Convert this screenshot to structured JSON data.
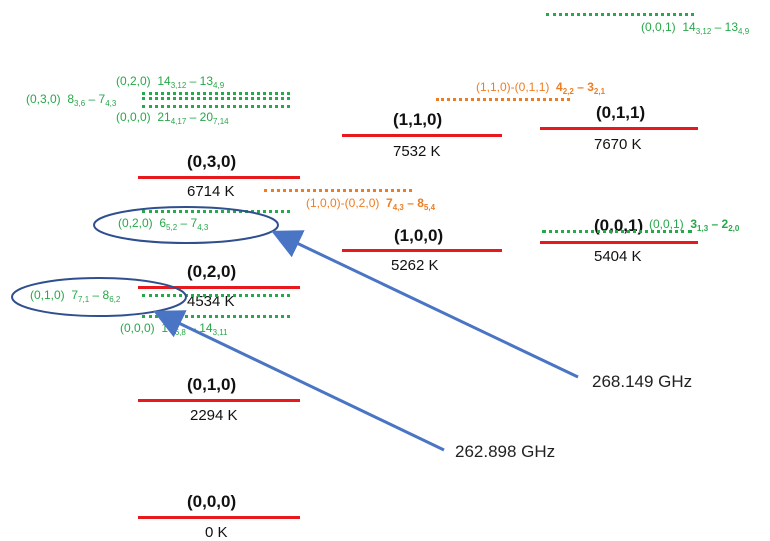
{
  "levels": {
    "l000": {
      "state": "(0,0,0)",
      "energy": "0 K"
    },
    "l010": {
      "state": "(0,1,0)",
      "energy": "2294 K"
    },
    "l020": {
      "state": "(0,2,0)",
      "energy": "4534 K"
    },
    "l030": {
      "state": "(0,3,0)",
      "energy": "6714 K"
    },
    "l100": {
      "state": "(1,0,0)",
      "energy": "5262 K"
    },
    "l001": {
      "state": "(0,0,1)",
      "energy": "5404 K"
    },
    "l110": {
      "state": "(1,1,0)",
      "energy": "7532 K"
    },
    "l011": {
      "state": "(0,1,1)",
      "energy": "7670 K"
    }
  },
  "transitions": {
    "t_001_top": {
      "state": "(0,0,1)",
      "upper": "14",
      "upper_sub": "3,12",
      "dash": "–",
      "lower": "13",
      "lower_sub": "4,9"
    },
    "t_020_top": {
      "state": "(0,2,0)",
      "upper": "14",
      "upper_sub": "3,12",
      "dash": "–",
      "lower": "13",
      "lower_sub": "4,9"
    },
    "t_030_top": {
      "state": "(0,3,0)",
      "upper": "8",
      "upper_sub": "3,6",
      "dash": "–",
      "lower": "7",
      "lower_sub": "4,3"
    },
    "t_000_top": {
      "state": "(0,0,0)",
      "upper": "21",
      "upper_sub": "4,17",
      "dash": "–",
      "lower": "20",
      "lower_sub": "7,14"
    },
    "t_110_011": {
      "state": "(1,1,0)-(0,1,1)",
      "upper": "4",
      "upper_sub": "2,2",
      "dash": "–",
      "lower": "3",
      "lower_sub": "2,1"
    },
    "t_100_020": {
      "state": "(1,0,0)-(0,2,0)",
      "upper": "7",
      "upper_sub": "4,3",
      "dash": "–",
      "lower": "8",
      "lower_sub": "5,4"
    },
    "t_020_mid": {
      "state": "(0,2,0)",
      "upper": "6",
      "upper_sub": "5,2",
      "dash": "–",
      "lower": "7",
      "lower_sub": "4,3"
    },
    "t_001_mid": {
      "state": "(0,0,1)",
      "upper": "3",
      "upper_sub": "1,3",
      "dash": "–",
      "lower": "2",
      "lower_sub": "2,0"
    },
    "t_010": {
      "state": "(0,1,0)",
      "upper": "7",
      "upper_sub": "7,1",
      "dash": "–",
      "lower": "8",
      "lower_sub": "6,2"
    },
    "t_000_bot": {
      "state": "(0,0,0)",
      "upper": "13",
      "upper_sub": "6,8",
      "dash": "–",
      "lower": "14",
      "lower_sub": "3,11"
    }
  },
  "frequencies": {
    "f1": "268.149 GHz",
    "f2": "262.898 GHz"
  },
  "colors": {
    "level": "#e8191c",
    "green": "#27a84a",
    "orange": "#ee7d22",
    "arrow": "#4a74c4",
    "ellipse": "#2f4f8f"
  }
}
